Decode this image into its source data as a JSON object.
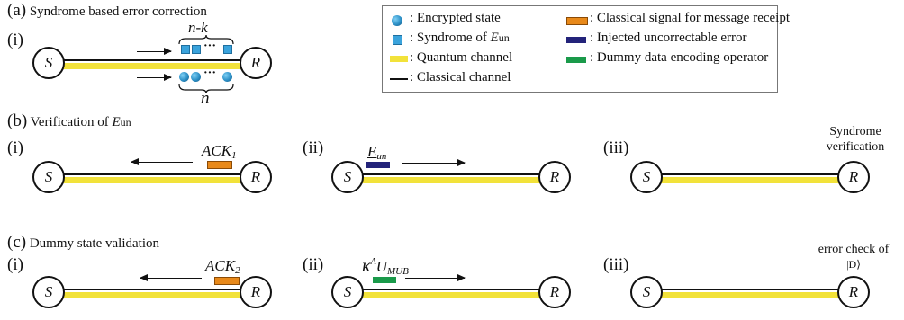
{
  "section_a": {
    "letter": "(a)",
    "title": "Syndrome based error correction",
    "roman": "(i)",
    "top_label": "n-k",
    "bottom_label": "n",
    "dots": "···"
  },
  "section_b": {
    "letter": "(b)",
    "title_prefix": "Verification of ",
    "title_italic": "E",
    "title_sub": "un",
    "panels": [
      {
        "roman": "(i)",
        "label": "ACK",
        "label_sub": "1"
      },
      {
        "roman": "(ii)",
        "label": "E",
        "label_sub": "un"
      },
      {
        "roman": "(iii)",
        "caption_line1": "Syndrome",
        "caption_line2": "verification"
      }
    ]
  },
  "section_c": {
    "letter": "(c)",
    "title": "Dummy state validation",
    "panels": [
      {
        "roman": "(i)",
        "label": "ACK",
        "label_sub": "2"
      },
      {
        "roman": "(ii)",
        "label_kappa": "κ",
        "label_sup": "A",
        "label": "U",
        "label_sub": "MUB"
      },
      {
        "roman": "(iii)",
        "caption_line1": "error check of",
        "caption_line2": "|D⟩"
      }
    ]
  },
  "nodes": {
    "sender": "S",
    "receiver": "R"
  },
  "legend": {
    "encrypted_state": ": Encrypted state",
    "syndrome_prefix": ": Syndrome of ",
    "syndrome_italic": "E",
    "syndrome_sub": "un",
    "quantum_channel": ": Quantum channel",
    "classical_channel": ": Classical channel",
    "classical_signal": ": Classical signal for message receipt",
    "injected_error": ": Injected uncorrectable error",
    "dummy_operator": ": Dummy data encoding operator"
  },
  "colors": {
    "quantum_channel": "#f2e23a",
    "classical_signal": "#e8891a",
    "injected_error": "#23237a",
    "dummy_operator": "#1a9a4a",
    "encrypted_state": "#2b8fc6",
    "syndrome": "#3aa3dc"
  }
}
